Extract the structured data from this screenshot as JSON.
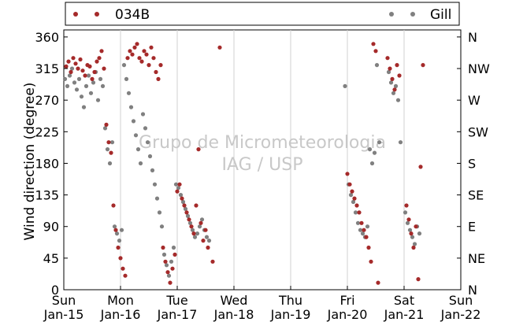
{
  "chart_data": {
    "type": "scatter",
    "ylabel": "Wind direction (degree)",
    "ylim": [
      0,
      370
    ],
    "y_ticks": [
      0,
      45,
      90,
      135,
      180,
      225,
      270,
      315,
      360
    ],
    "y_ticks_right": [
      "N",
      "NE",
      "E",
      "SE",
      "S",
      "SW",
      "W",
      "NW",
      "N"
    ],
    "x_ticks": [
      {
        "day": "Sun",
        "date": "Jan-15"
      },
      {
        "day": "Mon",
        "date": "Jan-16"
      },
      {
        "day": "Tue",
        "date": "Jan-17"
      },
      {
        "day": "Wed",
        "date": "Jan-18"
      },
      {
        "day": "Thu",
        "date": "Jan-19"
      },
      {
        "day": "Fri",
        "date": "Jan-20"
      },
      {
        "day": "Sat",
        "date": "Jan-21"
      },
      {
        "day": "Sun",
        "date": "Jan-22"
      }
    ],
    "xlim": [
      "Jan-15 00:00",
      "Jan-22 00:00"
    ],
    "grid": "vertical",
    "legend_position": "top",
    "watermark": [
      "Grupo de Micrometeorologia",
      "IAG / USP"
    ],
    "series": [
      {
        "name": "034B",
        "color": "#a52a2a",
        "points": [
          [
            "Jan-15 01:00",
            318
          ],
          [
            "Jan-15 02:00",
            325
          ],
          [
            "Jan-15 03:00",
            310
          ],
          [
            "Jan-15 04:00",
            330
          ],
          [
            "Jan-15 05:00",
            322
          ],
          [
            "Jan-15 06:00",
            315
          ],
          [
            "Jan-15 07:00",
            328
          ],
          [
            "Jan-15 08:00",
            312
          ],
          [
            "Jan-15 09:00",
            305
          ],
          [
            "Jan-15 10:00",
            320
          ],
          [
            "Jan-15 11:00",
            318
          ],
          [
            "Jan-15 12:00",
            300
          ],
          [
            "Jan-15 13:00",
            310
          ],
          [
            "Jan-15 14:00",
            325
          ],
          [
            "Jan-15 15:00",
            330
          ],
          [
            "Jan-15 16:00",
            340
          ],
          [
            "Jan-15 17:00",
            315
          ],
          [
            "Jan-15 18:00",
            235
          ],
          [
            "Jan-15 19:00",
            210
          ],
          [
            "Jan-15 20:00",
            195
          ],
          [
            "Jan-15 21:00",
            120
          ],
          [
            "Jan-15 22:00",
            85
          ],
          [
            "Jan-15 23:00",
            60
          ],
          [
            "Jan-16 00:00",
            45
          ],
          [
            "Jan-16 01:00",
            30
          ],
          [
            "Jan-16 02:00",
            20
          ],
          [
            "Jan-16 03:00",
            330
          ],
          [
            "Jan-16 04:00",
            340
          ],
          [
            "Jan-16 05:00",
            335
          ],
          [
            "Jan-16 06:00",
            345
          ],
          [
            "Jan-16 07:00",
            350
          ],
          [
            "Jan-16 08:00",
            330
          ],
          [
            "Jan-16 09:00",
            325
          ],
          [
            "Jan-16 10:00",
            340
          ],
          [
            "Jan-16 11:00",
            335
          ],
          [
            "Jan-16 12:00",
            320
          ],
          [
            "Jan-16 13:00",
            345
          ],
          [
            "Jan-16 14:00",
            330
          ],
          [
            "Jan-16 15:00",
            310
          ],
          [
            "Jan-16 16:00",
            300
          ],
          [
            "Jan-16 17:00",
            320
          ],
          [
            "Jan-16 18:00",
            60
          ],
          [
            "Jan-16 19:00",
            40
          ],
          [
            "Jan-16 20:00",
            25
          ],
          [
            "Jan-16 21:00",
            10
          ],
          [
            "Jan-16 22:00",
            30
          ],
          [
            "Jan-16 23:00",
            50
          ],
          [
            "Jan-17 00:00",
            140
          ],
          [
            "Jan-17 01:00",
            150
          ],
          [
            "Jan-17 02:00",
            130
          ],
          [
            "Jan-17 03:00",
            120
          ],
          [
            "Jan-17 04:00",
            110
          ],
          [
            "Jan-17 05:00",
            100
          ],
          [
            "Jan-17 06:00",
            90
          ],
          [
            "Jan-17 07:00",
            80
          ],
          [
            "Jan-17 08:00",
            120
          ],
          [
            "Jan-17 09:00",
            200
          ],
          [
            "Jan-17 10:00",
            95
          ],
          [
            "Jan-17 11:00",
            70
          ],
          [
            "Jan-17 12:00",
            85
          ],
          [
            "Jan-17 13:00",
            60
          ],
          [
            "Jan-17 15:00",
            40
          ],
          [
            "Jan-17 18:00",
            345
          ],
          [
            "Jan-20 00:00",
            165
          ],
          [
            "Jan-20 01:00",
            150
          ],
          [
            "Jan-20 02:00",
            140
          ],
          [
            "Jan-20 03:00",
            130
          ],
          [
            "Jan-20 04:00",
            120
          ],
          [
            "Jan-20 05:00",
            110
          ],
          [
            "Jan-20 06:00",
            95
          ],
          [
            "Jan-20 07:00",
            85
          ],
          [
            "Jan-20 08:00",
            75
          ],
          [
            "Jan-20 09:00",
            60
          ],
          [
            "Jan-20 10:00",
            40
          ],
          [
            "Jan-20 11:00",
            350
          ],
          [
            "Jan-20 12:00",
            340
          ],
          [
            "Jan-20 13:00",
            10
          ],
          [
            "Jan-20 17:00",
            330
          ],
          [
            "Jan-20 18:00",
            315
          ],
          [
            "Jan-20 19:00",
            300
          ],
          [
            "Jan-20 20:00",
            285
          ],
          [
            "Jan-20 21:00",
            320
          ],
          [
            "Jan-20 22:00",
            305
          ],
          [
            "Jan-21 01:00",
            120
          ],
          [
            "Jan-21 02:00",
            100
          ],
          [
            "Jan-21 03:00",
            80
          ],
          [
            "Jan-21 04:00",
            60
          ],
          [
            "Jan-21 05:00",
            90
          ],
          [
            "Jan-21 06:00",
            15
          ],
          [
            "Jan-21 07:00",
            175
          ],
          [
            "Jan-21 08:00",
            320
          ]
        ]
      },
      {
        "name": "Gill",
        "color": "#808080",
        "points": [
          [
            "Jan-15 00:30",
            300
          ],
          [
            "Jan-15 01:30",
            290
          ],
          [
            "Jan-15 02:30",
            305
          ],
          [
            "Jan-15 03:30",
            315
          ],
          [
            "Jan-15 04:30",
            295
          ],
          [
            "Jan-15 05:30",
            285
          ],
          [
            "Jan-15 06:30",
            300
          ],
          [
            "Jan-15 07:30",
            275
          ],
          [
            "Jan-15 08:30",
            260
          ],
          [
            "Jan-15 09:30",
            290
          ],
          [
            "Jan-15 10:30",
            305
          ],
          [
            "Jan-15 11:30",
            280
          ],
          [
            "Jan-15 12:30",
            295
          ],
          [
            "Jan-15 13:30",
            310
          ],
          [
            "Jan-15 14:30",
            270
          ],
          [
            "Jan-15 15:30",
            300
          ],
          [
            "Jan-15 16:30",
            290
          ],
          [
            "Jan-15 17:30",
            230
          ],
          [
            "Jan-15 18:30",
            200
          ],
          [
            "Jan-15 19:30",
            180
          ],
          [
            "Jan-15 20:30",
            210
          ],
          [
            "Jan-15 21:30",
            90
          ],
          [
            "Jan-15 22:30",
            80
          ],
          [
            "Jan-15 23:30",
            70
          ],
          [
            "Jan-16 00:30",
            85
          ],
          [
            "Jan-16 01:30",
            320
          ],
          [
            "Jan-16 02:30",
            300
          ],
          [
            "Jan-16 03:30",
            280
          ],
          [
            "Jan-16 04:30",
            260
          ],
          [
            "Jan-16 05:30",
            240
          ],
          [
            "Jan-16 06:30",
            220
          ],
          [
            "Jan-16 07:30",
            200
          ],
          [
            "Jan-16 08:30",
            180
          ],
          [
            "Jan-16 09:30",
            250
          ],
          [
            "Jan-16 10:30",
            230
          ],
          [
            "Jan-16 11:30",
            210
          ],
          [
            "Jan-16 12:30",
            190
          ],
          [
            "Jan-16 13:30",
            170
          ],
          [
            "Jan-16 14:30",
            150
          ],
          [
            "Jan-16 15:30",
            130
          ],
          [
            "Jan-16 16:30",
            110
          ],
          [
            "Jan-16 17:30",
            90
          ],
          [
            "Jan-16 18:30",
            50
          ],
          [
            "Jan-16 19:30",
            35
          ],
          [
            "Jan-16 20:30",
            20
          ],
          [
            "Jan-16 21:30",
            40
          ],
          [
            "Jan-16 22:30",
            60
          ],
          [
            "Jan-16 23:30",
            150
          ],
          [
            "Jan-17 00:30",
            145
          ],
          [
            "Jan-17 01:30",
            135
          ],
          [
            "Jan-17 02:30",
            125
          ],
          [
            "Jan-17 03:30",
            115
          ],
          [
            "Jan-17 04:30",
            105
          ],
          [
            "Jan-17 05:30",
            95
          ],
          [
            "Jan-17 06:30",
            85
          ],
          [
            "Jan-17 07:30",
            75
          ],
          [
            "Jan-17 08:30",
            80
          ],
          [
            "Jan-17 09:30",
            90
          ],
          [
            "Jan-17 10:30",
            100
          ],
          [
            "Jan-17 11:30",
            85
          ],
          [
            "Jan-17 12:30",
            75
          ],
          [
            "Jan-17 13:30",
            70
          ],
          [
            "Jan-19 23:00",
            290
          ],
          [
            "Jan-20 00:30",
            150
          ],
          [
            "Jan-20 01:30",
            135
          ],
          [
            "Jan-20 02:30",
            125
          ],
          [
            "Jan-20 03:30",
            110
          ],
          [
            "Jan-20 04:30",
            95
          ],
          [
            "Jan-20 05:30",
            85
          ],
          [
            "Jan-20 06:30",
            80
          ],
          [
            "Jan-20 07:30",
            75
          ],
          [
            "Jan-20 08:30",
            90
          ],
          [
            "Jan-20 09:30",
            200
          ],
          [
            "Jan-20 10:30",
            180
          ],
          [
            "Jan-20 11:30",
            195
          ],
          [
            "Jan-20 12:30",
            320
          ],
          [
            "Jan-20 13:30",
            210
          ],
          [
            "Jan-20 17:30",
            310
          ],
          [
            "Jan-20 18:30",
            295
          ],
          [
            "Jan-20 19:30",
            280
          ],
          [
            "Jan-20 20:30",
            290
          ],
          [
            "Jan-20 21:30",
            270
          ],
          [
            "Jan-20 22:30",
            210
          ],
          [
            "Jan-21 00:30",
            110
          ],
          [
            "Jan-21 01:30",
            95
          ],
          [
            "Jan-21 02:30",
            85
          ],
          [
            "Jan-21 03:30",
            75
          ],
          [
            "Jan-21 04:30",
            65
          ],
          [
            "Jan-21 05:30",
            90
          ],
          [
            "Jan-21 06:30",
            80
          ]
        ]
      }
    ]
  }
}
